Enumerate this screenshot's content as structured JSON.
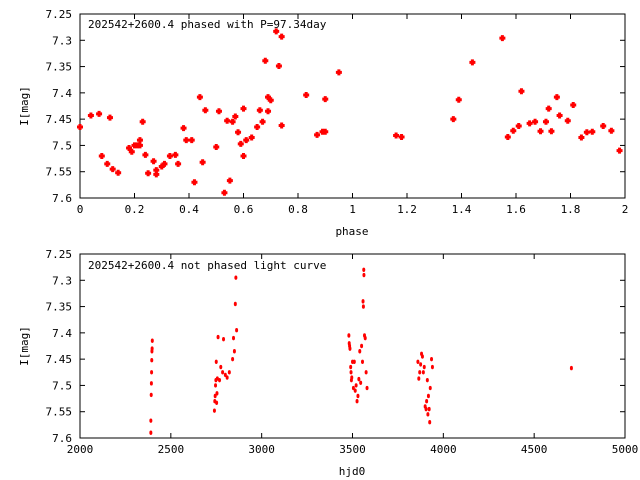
{
  "chart_data": [
    {
      "type": "scatter",
      "title": "202542+2600.4 phased with P=97.34day",
      "xlabel": "phase",
      "ylabel": "I[mag]",
      "xlim": [
        0,
        2
      ],
      "ylim": [
        7.25,
        7.6
      ],
      "y_inverted": true,
      "x_ticks": [
        "0",
        "0.2",
        "0.4",
        "0.6",
        "0.8",
        "1",
        "1.2",
        "1.4",
        "1.6",
        "1.8",
        "2"
      ],
      "y_ticks": [
        "7.25",
        "7.3",
        "7.35",
        "7.4",
        "7.45",
        "7.5",
        "7.55",
        "7.6"
      ],
      "grid": false,
      "marker_color": "#ff0000",
      "points": [
        [
          0.0,
          7.465
        ],
        [
          0.04,
          7.443
        ],
        [
          0.07,
          7.44
        ],
        [
          0.08,
          7.52
        ],
        [
          0.1,
          7.535
        ],
        [
          0.11,
          7.447
        ],
        [
          0.12,
          7.545
        ],
        [
          0.14,
          7.552
        ],
        [
          0.18,
          7.505
        ],
        [
          0.19,
          7.512
        ],
        [
          0.2,
          7.5
        ],
        [
          0.21,
          7.5
        ],
        [
          0.22,
          7.49
        ],
        [
          0.22,
          7.5
        ],
        [
          0.23,
          7.455
        ],
        [
          0.24,
          7.518
        ],
        [
          0.25,
          7.553
        ],
        [
          0.27,
          7.53
        ],
        [
          0.28,
          7.547
        ],
        [
          0.28,
          7.555
        ],
        [
          0.3,
          7.54
        ],
        [
          0.31,
          7.535
        ],
        [
          0.33,
          7.52
        ],
        [
          0.35,
          7.518
        ],
        [
          0.36,
          7.535
        ],
        [
          0.38,
          7.467
        ],
        [
          0.39,
          7.49
        ],
        [
          0.41,
          7.49
        ],
        [
          0.42,
          7.57
        ],
        [
          0.44,
          7.408
        ],
        [
          0.45,
          7.532
        ],
        [
          0.46,
          7.433
        ],
        [
          0.5,
          7.503
        ],
        [
          0.51,
          7.435
        ],
        [
          0.53,
          7.59
        ],
        [
          0.54,
          7.453
        ],
        [
          0.55,
          7.567
        ],
        [
          0.56,
          7.455
        ],
        [
          0.57,
          7.445
        ],
        [
          0.58,
          7.475
        ],
        [
          0.59,
          7.497
        ],
        [
          0.6,
          7.43
        ],
        [
          0.6,
          7.52
        ],
        [
          0.61,
          7.49
        ],
        [
          0.63,
          7.485
        ],
        [
          0.65,
          7.465
        ],
        [
          0.66,
          7.433
        ],
        [
          0.67,
          7.455
        ],
        [
          0.68,
          7.339
        ],
        [
          0.69,
          7.408
        ],
        [
          0.69,
          7.435
        ],
        [
          0.7,
          7.414
        ],
        [
          0.72,
          7.283
        ],
        [
          0.73,
          7.349
        ],
        [
          0.74,
          7.293
        ],
        [
          0.74,
          7.462
        ],
        [
          0.83,
          7.404
        ],
        [
          0.87,
          7.48
        ],
        [
          0.89,
          7.474
        ],
        [
          0.9,
          7.474
        ],
        [
          0.9,
          7.412
        ],
        [
          0.95,
          7.361
        ],
        [
          1.16,
          7.481
        ],
        [
          1.18,
          7.484
        ],
        [
          1.37,
          7.45
        ],
        [
          1.39,
          7.413
        ],
        [
          1.44,
          7.342
        ],
        [
          1.55,
          7.296
        ],
        [
          1.57,
          7.484
        ],
        [
          1.59,
          7.472
        ],
        [
          1.61,
          7.463
        ],
        [
          1.62,
          7.397
        ],
        [
          1.65,
          7.458
        ],
        [
          1.67,
          7.455
        ],
        [
          1.69,
          7.473
        ],
        [
          1.71,
          7.455
        ],
        [
          1.72,
          7.43
        ],
        [
          1.73,
          7.473
        ],
        [
          1.75,
          7.408
        ],
        [
          1.76,
          7.443
        ],
        [
          1.79,
          7.453
        ],
        [
          1.81,
          7.423
        ],
        [
          1.84,
          7.485
        ],
        [
          1.86,
          7.475
        ],
        [
          1.88,
          7.474
        ],
        [
          1.92,
          7.463
        ],
        [
          1.95,
          7.472
        ],
        [
          1.98,
          7.51
        ]
      ]
    },
    {
      "type": "scatter",
      "title": "202542+2600.4 not phased light curve",
      "xlabel": "hjd0",
      "ylabel": "I[mag]",
      "xlim": [
        2000,
        5000
      ],
      "ylim": [
        7.25,
        7.6
      ],
      "y_inverted": true,
      "x_ticks": [
        "2000",
        "2500",
        "3000",
        "3500",
        "4000",
        "4500",
        "5000"
      ],
      "y_ticks": [
        "7.25",
        "7.3",
        "7.35",
        "7.4",
        "7.45",
        "7.5",
        "7.55",
        "7.6"
      ],
      "grid": false,
      "marker_color": "#ff0000",
      "points": [
        [
          2390,
          7.59
        ],
        [
          2390,
          7.567
        ],
        [
          2392,
          7.518
        ],
        [
          2393,
          7.496
        ],
        [
          2394,
          7.475
        ],
        [
          2395,
          7.452
        ],
        [
          2396,
          7.435
        ],
        [
          2397,
          7.43
        ],
        [
          2398,
          7.415
        ],
        [
          2740,
          7.548
        ],
        [
          2742,
          7.53
        ],
        [
          2744,
          7.52
        ],
        [
          2746,
          7.5
        ],
        [
          2748,
          7.49
        ],
        [
          2750,
          7.455
        ],
        [
          2752,
          7.533
        ],
        [
          2754,
          7.515
        ],
        [
          2756,
          7.487
        ],
        [
          2760,
          7.408
        ],
        [
          2768,
          7.49
        ],
        [
          2775,
          7.465
        ],
        [
          2785,
          7.475
        ],
        [
          2790,
          7.412
        ],
        [
          2800,
          7.48
        ],
        [
          2810,
          7.485
        ],
        [
          2822,
          7.475
        ],
        [
          2840,
          7.45
        ],
        [
          2845,
          7.41
        ],
        [
          2850,
          7.435
        ],
        [
          2855,
          7.345
        ],
        [
          2858,
          7.295
        ],
        [
          2862,
          7.395
        ],
        [
          3480,
          7.405
        ],
        [
          3482,
          7.42
        ],
        [
          3484,
          7.425
        ],
        [
          3486,
          7.43
        ],
        [
          3490,
          7.465
        ],
        [
          3492,
          7.475
        ],
        [
          3494,
          7.49
        ],
        [
          3496,
          7.485
        ],
        [
          3500,
          7.455
        ],
        [
          3505,
          7.505
        ],
        [
          3510,
          7.455
        ],
        [
          3515,
          7.51
        ],
        [
          3520,
          7.5
        ],
        [
          3525,
          7.53
        ],
        [
          3530,
          7.52
        ],
        [
          3535,
          7.488
        ],
        [
          3540,
          7.435
        ],
        [
          3545,
          7.495
        ],
        [
          3550,
          7.425
        ],
        [
          3555,
          7.455
        ],
        [
          3558,
          7.34
        ],
        [
          3560,
          7.35
        ],
        [
          3562,
          7.28
        ],
        [
          3563,
          7.29
        ],
        [
          3566,
          7.405
        ],
        [
          3570,
          7.41
        ],
        [
          3575,
          7.475
        ],
        [
          3580,
          7.505
        ],
        [
          3860,
          7.455
        ],
        [
          3865,
          7.487
        ],
        [
          3870,
          7.475
        ],
        [
          3875,
          7.46
        ],
        [
          3880,
          7.44
        ],
        [
          3885,
          7.445
        ],
        [
          3890,
          7.475
        ],
        [
          3895,
          7.465
        ],
        [
          3900,
          7.54
        ],
        [
          3905,
          7.545
        ],
        [
          3908,
          7.53
        ],
        [
          3912,
          7.49
        ],
        [
          3915,
          7.555
        ],
        [
          3918,
          7.52
        ],
        [
          3922,
          7.545
        ],
        [
          3925,
          7.57
        ],
        [
          3928,
          7.505
        ],
        [
          3935,
          7.45
        ],
        [
          3940,
          7.465
        ],
        [
          4705,
          7.467
        ]
      ]
    }
  ]
}
